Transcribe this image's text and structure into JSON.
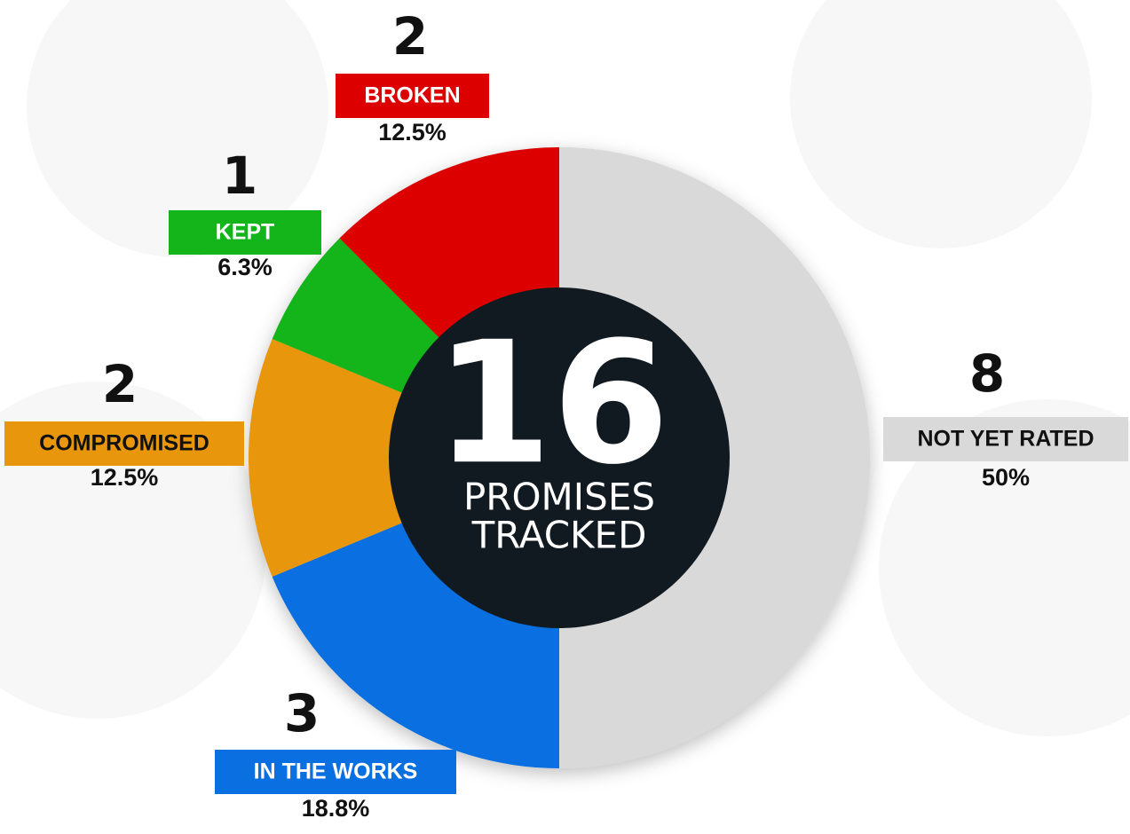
{
  "chart_data": {
    "type": "donut",
    "categories": [
      "NOT YET RATED",
      "IN THE WORKS",
      "COMPROMISED",
      "KEPT",
      "BROKEN"
    ],
    "values": [
      8,
      3,
      2,
      1,
      2
    ],
    "percentages": [
      50,
      18.8,
      12.5,
      6.3,
      12.5
    ],
    "percentage_labels": [
      "50%",
      "18.8%",
      "12.5%",
      "6.3%",
      "12.5%"
    ],
    "colors": [
      "#d9d9d9",
      "#0a6fe0",
      "#e8960c",
      "#13b51a",
      "#dc0000"
    ],
    "total": 16,
    "center_label": [
      "PROMISES",
      "TRACKED"
    ]
  }
}
